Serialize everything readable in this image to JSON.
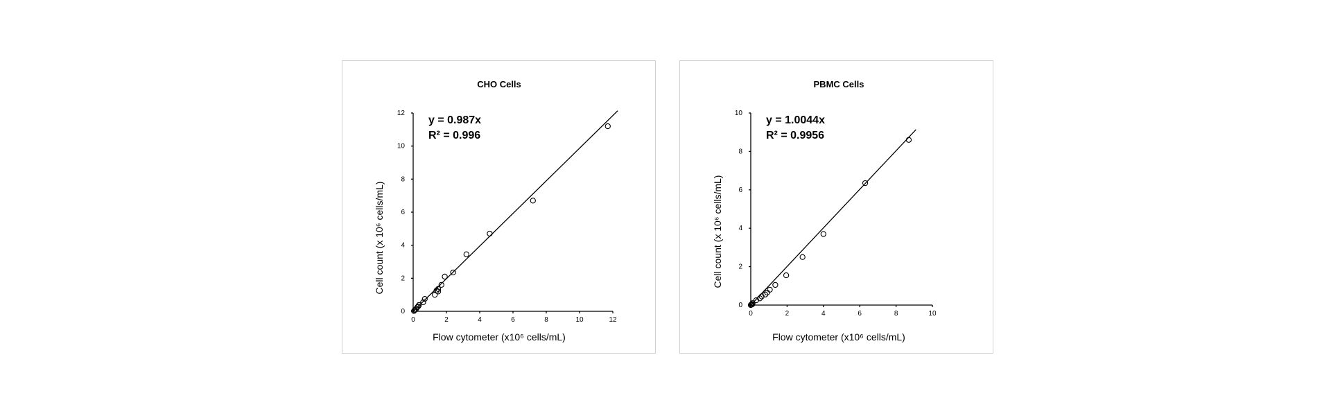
{
  "chart_data": [
    {
      "type": "scatter",
      "title": "CHO Cells",
      "xlabel": "Flow cytometer (x10⁶ cells/mL)",
      "ylabel": "Cell count (x 10⁶ cells/mL)",
      "xlim": [
        0,
        12
      ],
      "ylim": [
        0,
        12
      ],
      "xticks": [
        0,
        2,
        4,
        6,
        8,
        10,
        12
      ],
      "yticks": [
        0,
        2,
        4,
        6,
        8,
        10,
        12
      ],
      "equation": "y = 0.987x",
      "r2": "R² = 0.996",
      "slope": 0.987,
      "fit_x_range": [
        0,
        12.3
      ],
      "grid": false,
      "points": [
        {
          "x": 0.05,
          "y": 0.02
        },
        {
          "x": 0.1,
          "y": 0.08
        },
        {
          "x": 0.18,
          "y": 0.15
        },
        {
          "x": 0.25,
          "y": 0.25
        },
        {
          "x": 0.3,
          "y": 0.3
        },
        {
          "x": 0.35,
          "y": 0.38
        },
        {
          "x": 0.6,
          "y": 0.55
        },
        {
          "x": 0.7,
          "y": 0.75
        },
        {
          "x": 1.3,
          "y": 1.0
        },
        {
          "x": 1.4,
          "y": 1.25
        },
        {
          "x": 1.5,
          "y": 1.2
        },
        {
          "x": 1.5,
          "y": 1.35
        },
        {
          "x": 1.7,
          "y": 1.6
        },
        {
          "x": 1.9,
          "y": 2.1
        },
        {
          "x": 2.4,
          "y": 2.35
        },
        {
          "x": 3.2,
          "y": 3.45
        },
        {
          "x": 4.6,
          "y": 4.7
        },
        {
          "x": 7.2,
          "y": 6.7
        },
        {
          "x": 11.7,
          "y": 11.2
        }
      ]
    },
    {
      "type": "scatter",
      "title": "PBMC Cells",
      "xlabel": "Flow cytometer (x10⁶ cells/mL)",
      "ylabel": "Cell count (x 10⁶ cells/mL)",
      "xlim": [
        0,
        10
      ],
      "ylim": [
        0,
        10
      ],
      "xticks": [
        0,
        2,
        4,
        6,
        8,
        10
      ],
      "yticks": [
        0,
        2,
        4,
        6,
        8,
        10
      ],
      "equation": "y = 1.0044x",
      "r2": "R² = 0.9956",
      "slope": 1.0044,
      "fit_x_range": [
        0,
        9.1
      ],
      "grid": false,
      "points": [
        {
          "x": 0.0,
          "y": 0.0
        },
        {
          "x": 0.02,
          "y": 0.02
        },
        {
          "x": 0.05,
          "y": 0.05
        },
        {
          "x": 0.08,
          "y": 0.04
        },
        {
          "x": 0.1,
          "y": 0.1
        },
        {
          "x": 0.3,
          "y": 0.25
        },
        {
          "x": 0.5,
          "y": 0.35
        },
        {
          "x": 0.6,
          "y": 0.45
        },
        {
          "x": 0.8,
          "y": 0.55
        },
        {
          "x": 0.9,
          "y": 0.65
        },
        {
          "x": 1.05,
          "y": 0.8
        },
        {
          "x": 1.35,
          "y": 1.05
        },
        {
          "x": 1.95,
          "y": 1.55
        },
        {
          "x": 2.85,
          "y": 2.5
        },
        {
          "x": 4.0,
          "y": 3.7
        },
        {
          "x": 6.3,
          "y": 6.35
        },
        {
          "x": 8.7,
          "y": 8.6
        }
      ]
    }
  ]
}
